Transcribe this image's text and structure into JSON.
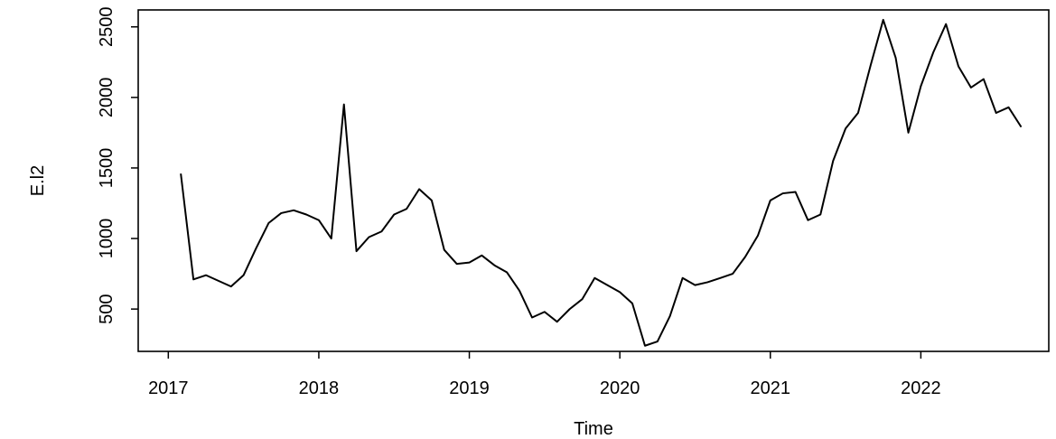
{
  "chart_data": {
    "type": "line",
    "title": "",
    "xlabel": "Time",
    "ylabel": "E.l2",
    "xlim": [
      2016.8,
      2022.85
    ],
    "ylim": [
      200,
      2620
    ],
    "x_ticks": [
      2017,
      2018,
      2019,
      2020,
      2021,
      2022
    ],
    "x_tick_labels": [
      "2017",
      "2018",
      "2019",
      "2020",
      "2021",
      "2022"
    ],
    "y_ticks": [
      500,
      1000,
      1500,
      2000,
      2500
    ],
    "y_tick_labels": [
      "500",
      "1000",
      "1500",
      "2000",
      "2500"
    ],
    "grid": false,
    "series": [
      {
        "color": "#000000",
        "x": [
          2017.083,
          2017.167,
          2017.25,
          2017.333,
          2017.417,
          2017.5,
          2017.583,
          2017.667,
          2017.75,
          2017.833,
          2017.917,
          2018.0,
          2018.083,
          2018.167,
          2018.25,
          2018.333,
          2018.417,
          2018.5,
          2018.583,
          2018.667,
          2018.75,
          2018.833,
          2018.917,
          2019.0,
          2019.083,
          2019.167,
          2019.25,
          2019.333,
          2019.417,
          2019.5,
          2019.583,
          2019.667,
          2019.75,
          2019.833,
          2019.917,
          2020.0,
          2020.083,
          2020.167,
          2020.25,
          2020.333,
          2020.417,
          2020.5,
          2020.583,
          2020.667,
          2020.75,
          2020.833,
          2020.917,
          2021.0,
          2021.083,
          2021.167,
          2021.25,
          2021.333,
          2021.417,
          2021.5,
          2021.583,
          2021.667,
          2021.75,
          2021.833,
          2021.917,
          2022.0,
          2022.083,
          2022.167,
          2022.25,
          2022.333,
          2022.417,
          2022.5,
          2022.583,
          2022.667
        ],
        "y": [
          1460,
          710,
          740,
          700,
          660,
          740,
          930,
          1110,
          1180,
          1200,
          1170,
          1130,
          1000,
          1950,
          910,
          1010,
          1050,
          1170,
          1210,
          1350,
          1270,
          920,
          820,
          830,
          880,
          810,
          760,
          630,
          440,
          480,
          410,
          500,
          570,
          720,
          670,
          620,
          540,
          240,
          270,
          450,
          720,
          670,
          690,
          720,
          750,
          870,
          1020,
          1270,
          1320,
          1330,
          1130,
          1170,
          1550,
          1780,
          1890,
          2230,
          2550,
          2280,
          1750,
          2080,
          2320,
          2520,
          2220,
          2070,
          2130,
          1890,
          1930,
          1790
        ]
      }
    ]
  }
}
